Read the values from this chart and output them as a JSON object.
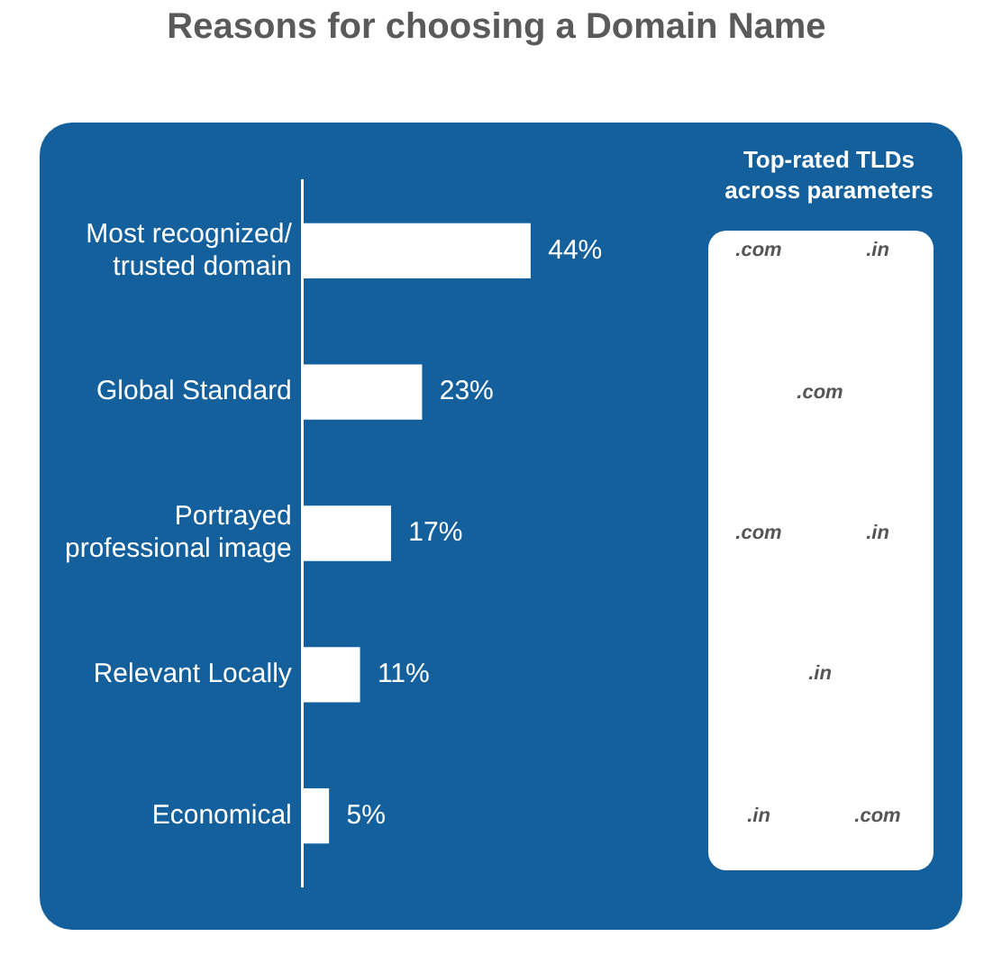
{
  "chart_data": {
    "type": "bar",
    "orientation": "horizontal",
    "title": "Reasons for choosing a Domain Name",
    "categories": [
      "Most recognized/ trusted domain",
      "Global Standard",
      "Portrayed professional image",
      "Relevant Locally",
      "Economical"
    ],
    "values": [
      44,
      23,
      17,
      11,
      5
    ],
    "color": "#ffffff",
    "value_labels": [
      "44%",
      "23%",
      "17%",
      "11%",
      "5%"
    ],
    "legend": false,
    "annotations": [
      "Top-rated TLDs across parameters",
      ".com",
      ".in",
      ".com",
      ".com",
      ".in",
      ".in",
      ".in",
      ".com"
    ]
  }
}
